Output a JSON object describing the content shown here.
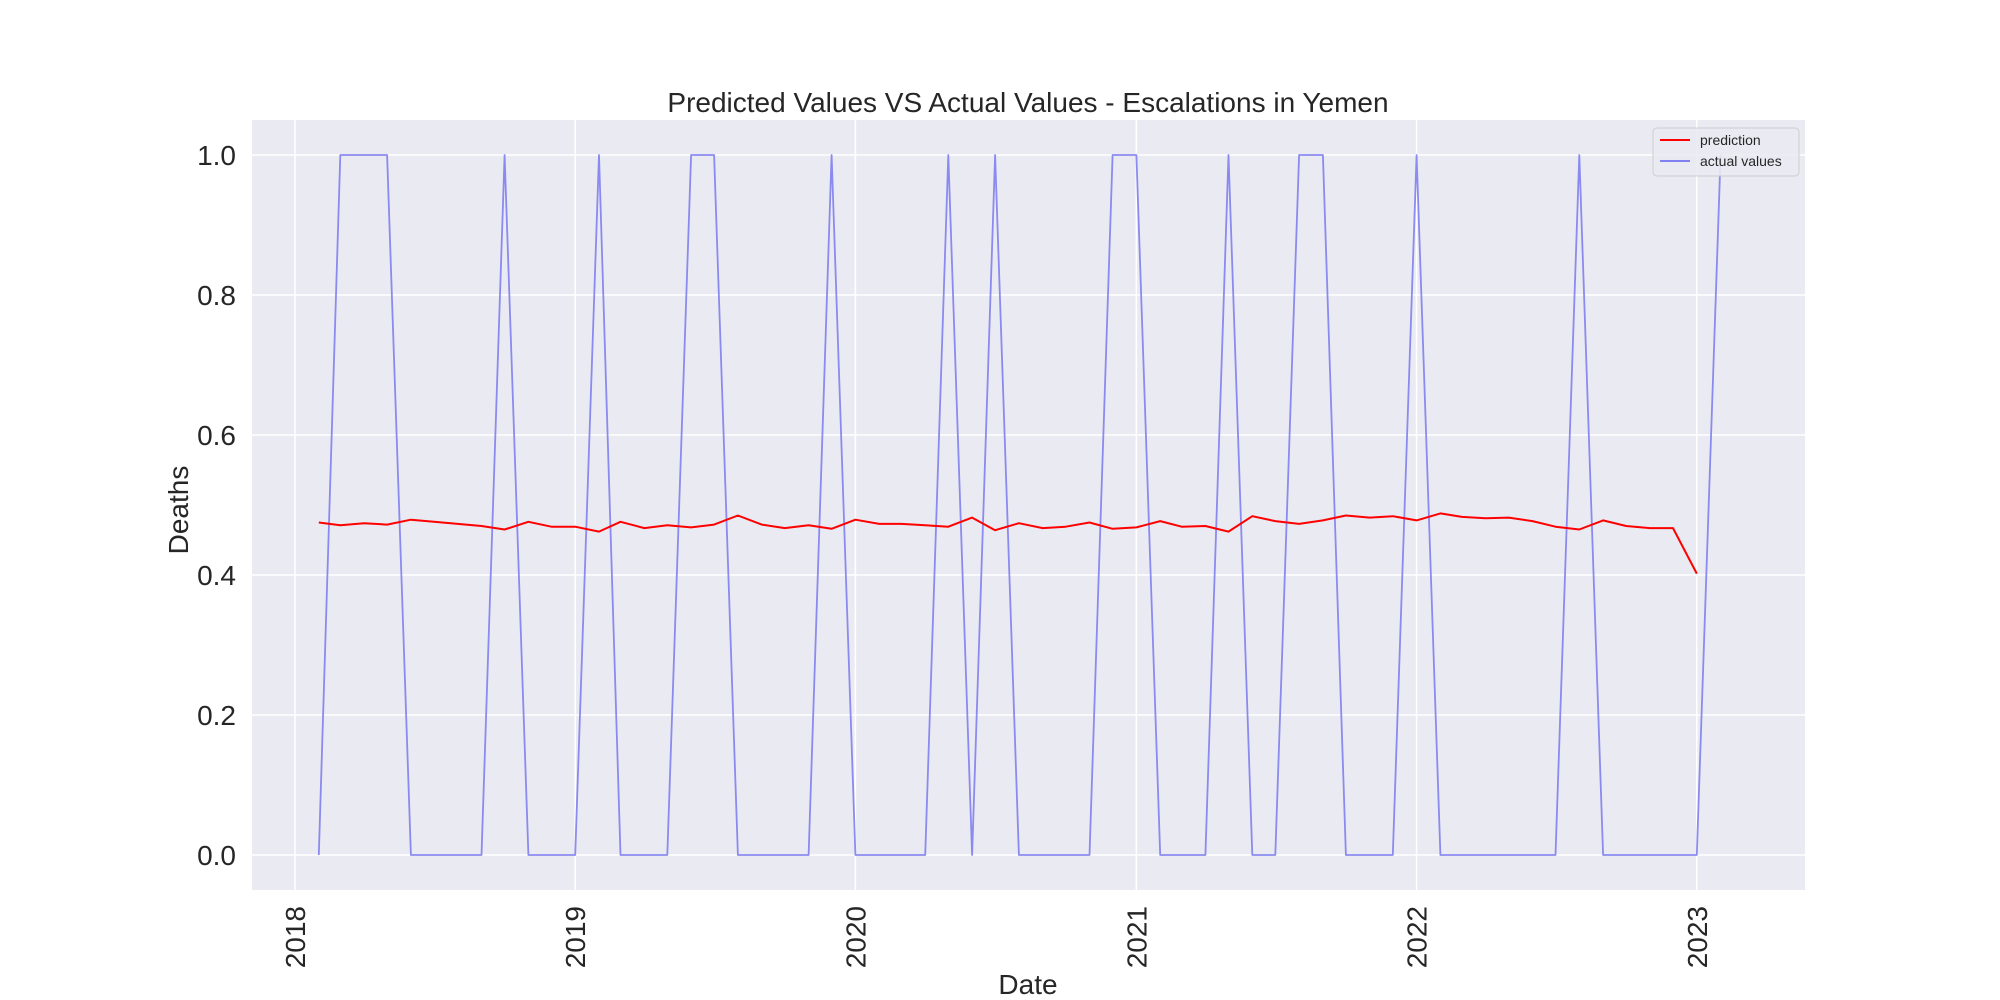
{
  "chart_data": {
    "type": "line",
    "title": "Predicted Values VS Actual Values - Escalations in Yemen",
    "xlabel": "Date",
    "ylabel": "Deaths",
    "xlim": [
      "2017-11-06",
      "2023-05-22"
    ],
    "ylim": [
      -0.05,
      1.05
    ],
    "x_ticks": [
      "2018-01-01",
      "2019-01-01",
      "2020-01-01",
      "2021-01-01",
      "2022-01-01",
      "2023-01-01"
    ],
    "x_tick_labels": [
      "2018",
      "2019",
      "2020",
      "2021",
      "2022",
      "2023"
    ],
    "y_ticks": [
      0.0,
      0.2,
      0.4,
      0.6,
      0.8,
      1.0
    ],
    "y_tick_labels": [
      "0.0",
      "0.2",
      "0.4",
      "0.6",
      "0.8",
      "1.0"
    ],
    "grid": true,
    "legend_position": "top-right",
    "x": [
      "2018-02",
      "2018-03",
      "2018-04",
      "2018-05",
      "2018-06",
      "2018-07",
      "2018-08",
      "2018-09",
      "2018-10",
      "2018-11",
      "2018-12",
      "2019-01",
      "2019-02",
      "2019-03",
      "2019-04",
      "2019-05",
      "2019-06",
      "2019-07",
      "2019-08",
      "2019-09",
      "2019-10",
      "2019-11",
      "2019-12",
      "2020-01",
      "2020-02",
      "2020-03",
      "2020-04",
      "2020-05",
      "2020-06",
      "2020-07",
      "2020-08",
      "2020-09",
      "2020-10",
      "2020-11",
      "2020-12",
      "2021-01",
      "2021-02",
      "2021-03",
      "2021-04",
      "2021-05",
      "2021-06",
      "2021-07",
      "2021-08",
      "2021-09",
      "2021-10",
      "2021-11",
      "2021-12",
      "2022-01",
      "2022-02",
      "2022-03",
      "2022-04",
      "2022-05",
      "2022-06",
      "2022-07",
      "2022-08",
      "2022-09",
      "2022-10",
      "2022-11",
      "2022-12",
      "2023-01",
      "2023-02"
    ],
    "series": [
      {
        "name": "prediction",
        "color": "#ff0000",
        "values": [
          0.475,
          0.471,
          0.474,
          0.472,
          0.479,
          0.476,
          0.473,
          0.47,
          0.465,
          0.476,
          0.469,
          0.469,
          0.462,
          0.476,
          0.467,
          0.471,
          0.468,
          0.472,
          0.485,
          0.472,
          0.467,
          0.471,
          0.466,
          0.479,
          0.473,
          0.473,
          0.471,
          0.469,
          0.482,
          0.464,
          0.474,
          0.467,
          0.469,
          0.475,
          0.466,
          0.468,
          0.477,
          0.469,
          0.47,
          0.462,
          0.484,
          0.477,
          0.473,
          0.478,
          0.485,
          0.482,
          0.484,
          0.478,
          0.488,
          0.483,
          0.481,
          0.482,
          0.477,
          0.469,
          0.465,
          0.478,
          0.47,
          0.467,
          0.467,
          0.402,
          null
        ]
      },
      {
        "name": "actual values",
        "color": "#8080f0",
        "values": [
          0,
          1,
          1,
          1,
          0,
          0,
          0,
          0,
          1,
          0,
          0,
          0,
          1,
          0,
          0,
          0,
          1,
          1,
          0,
          0,
          0,
          0,
          1,
          0,
          0,
          0,
          0,
          1,
          0,
          1,
          0,
          0,
          0,
          0,
          1,
          1,
          0,
          0,
          0,
          1,
          0,
          0,
          1,
          1,
          0,
          0,
          0,
          1,
          0,
          0,
          0,
          0,
          0,
          0,
          1,
          0,
          0,
          0,
          0,
          0,
          1
        ]
      }
    ]
  }
}
